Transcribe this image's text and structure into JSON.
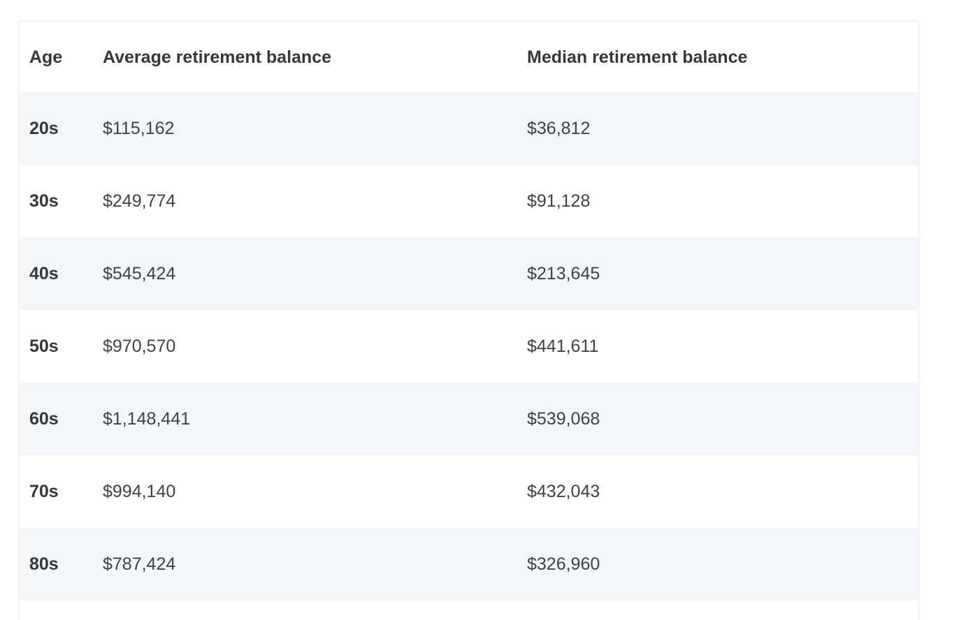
{
  "colors": {
    "page_background": "#ffffff",
    "stripe_row_background": "#f4f5f7",
    "table_border": "#e8e9eb",
    "header_text": "#353739",
    "cell_text": "#3f4245"
  },
  "table": {
    "columns": [
      "Age",
      "Average retirement balance",
      "Median retirement balance"
    ],
    "rows": [
      {
        "age": "20s",
        "average": "$115,162",
        "median": "$36,812"
      },
      {
        "age": "30s",
        "average": "$249,774",
        "median": "$91,128"
      },
      {
        "age": "40s",
        "average": "$545,424",
        "median": "$213,645"
      },
      {
        "age": "50s",
        "average": "$970,570",
        "median": "$441,611"
      },
      {
        "age": "60s",
        "average": "$1,148,441",
        "median": "$539,068"
      },
      {
        "age": "70s",
        "average": "$994,140",
        "median": "$432,043"
      },
      {
        "age": "80s",
        "average": "$787,424",
        "median": "$326,960"
      }
    ]
  },
  "chart_data": {
    "type": "table",
    "title": "",
    "columns": [
      "Age",
      "Average retirement balance",
      "Median retirement balance"
    ],
    "categories": [
      "20s",
      "30s",
      "40s",
      "50s",
      "60s",
      "70s",
      "80s"
    ],
    "series": [
      {
        "name": "Average retirement balance",
        "values": [
          115162,
          249774,
          545424,
          970570,
          1148441,
          994140,
          787424
        ]
      },
      {
        "name": "Median retirement balance",
        "values": [
          36812,
          91128,
          213645,
          441611,
          539068,
          432043,
          326960
        ]
      }
    ],
    "layout": {
      "striped_rows": true,
      "stripe_starts_on_first_data_row": true,
      "grid": "none",
      "header_style": "bold"
    }
  }
}
